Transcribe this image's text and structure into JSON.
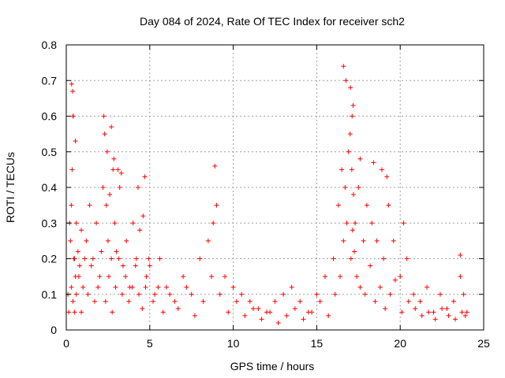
{
  "chart_data": {
    "type": "scatter",
    "title": "Day 084 of 2024, Rate Of TEC Index for receiver sch2",
    "xlabel": "GPS time / hours",
    "ylabel": "ROTI / TECUs",
    "xlim": [
      0,
      25
    ],
    "ylim": [
      0,
      0.8
    ],
    "xticks": [
      "0",
      "5",
      "10",
      "15",
      "20",
      "25"
    ],
    "yticks": [
      "0",
      "0.1",
      "0.2",
      "0.3",
      "0.4",
      "0.5",
      "0.6",
      "0.7",
      "0.8"
    ],
    "grid": true,
    "marker": "+",
    "color": "#ff0000",
    "series": [
      {
        "x": [
          0.1,
          0.2,
          0.25,
          0.3,
          0.35,
          0.4,
          0.45,
          0.5,
          0.55,
          0.6,
          0.7,
          0.8,
          0.9,
          1.0,
          1.2,
          1.4,
          1.6,
          1.8,
          2.0,
          2.2,
          2.3,
          2.4,
          2.5,
          2.6,
          2.7,
          2.8,
          2.9,
          3.0,
          3.2,
          3.4,
          3.6,
          3.8,
          4.0,
          4.2,
          4.4,
          4.6,
          4.8,
          5.0,
          5.3,
          5.6,
          6.0,
          6.5,
          7.0,
          7.5,
          8.0,
          8.5,
          8.8,
          9.0,
          9.5,
          10.0,
          10.5,
          11.0,
          11.5,
          12.0,
          12.5,
          13.0,
          13.5,
          14.0,
          14.5,
          15.0,
          15.5,
          16.0,
          16.3,
          16.5,
          16.7,
          16.9,
          17.0,
          17.1,
          17.2,
          17.3,
          17.5,
          17.8,
          18.0,
          18.3,
          18.6,
          19.0,
          19.3,
          19.6,
          20.0,
          20.4,
          20.8,
          21.2,
          21.6,
          22.0,
          22.4,
          22.8,
          23.2,
          23.6,
          23.8,
          24.0,
          0.15,
          0.3,
          0.4,
          0.5,
          0.6,
          0.75,
          0.9,
          1.1,
          1.3,
          1.5,
          1.7,
          1.9,
          2.1,
          2.35,
          2.55,
          2.75,
          2.95,
          3.15,
          3.35,
          3.55,
          3.75,
          3.95,
          4.15,
          4.35,
          4.55,
          4.75,
          4.95,
          5.2,
          5.5,
          5.8,
          6.2,
          6.7,
          7.2,
          7.7,
          8.2,
          8.7,
          9.2,
          9.7,
          10.2,
          10.7,
          11.2,
          11.7,
          12.2,
          12.7,
          13.2,
          13.7,
          14.2,
          14.7,
          15.2,
          15.7,
          16.1,
          16.4,
          16.6,
          16.8,
          17.05,
          17.15,
          17.25,
          17.4,
          17.6,
          17.9,
          18.2,
          18.5,
          18.8,
          19.1,
          19.4,
          19.7,
          20.1,
          20.5,
          20.9,
          21.3,
          21.7,
          22.1,
          22.5,
          22.9,
          23.3,
          23.7,
          23.9,
          0.32,
          0.38,
          0.42,
          0.55,
          2.25,
          2.45,
          2.7,
          2.85,
          3.1,
          3.3,
          4.3,
          4.7,
          8.9,
          16.6,
          16.75,
          17.02,
          17.12,
          17.18,
          17.6,
          18.4,
          18.9,
          19.2,
          20.2,
          23.6
        ],
        "y": [
          0.1,
          0.3,
          0.25,
          0.35,
          0.45,
          0.6,
          0.2,
          0.05,
          0.15,
          0.3,
          0.22,
          0.18,
          0.28,
          0.12,
          0.25,
          0.35,
          0.2,
          0.3,
          0.15,
          0.4,
          0.55,
          0.35,
          0.25,
          0.38,
          0.2,
          0.45,
          0.3,
          0.22,
          0.4,
          0.18,
          0.25,
          0.12,
          0.3,
          0.2,
          0.28,
          0.32,
          0.15,
          0.18,
          0.1,
          0.2,
          0.12,
          0.08,
          0.15,
          0.1,
          0.2,
          0.25,
          0.3,
          0.35,
          0.15,
          0.12,
          0.1,
          0.08,
          0.06,
          0.05,
          0.08,
          0.1,
          0.12,
          0.08,
          0.05,
          0.1,
          0.15,
          0.2,
          0.35,
          0.45,
          0.4,
          0.5,
          0.55,
          0.45,
          0.38,
          0.3,
          0.4,
          0.25,
          0.35,
          0.3,
          0.25,
          0.2,
          0.35,
          0.25,
          0.15,
          0.2,
          0.1,
          0.08,
          0.12,
          0.05,
          0.1,
          0.06,
          0.08,
          0.15,
          0.1,
          0.05,
          0.05,
          0.12,
          0.08,
          0.2,
          0.1,
          0.15,
          0.05,
          0.2,
          0.1,
          0.18,
          0.08,
          0.12,
          0.22,
          0.08,
          0.15,
          0.05,
          0.12,
          0.2,
          0.1,
          0.15,
          0.08,
          0.12,
          0.18,
          0.1,
          0.06,
          0.12,
          0.2,
          0.08,
          0.12,
          0.05,
          0.1,
          0.06,
          0.12,
          0.04,
          0.08,
          0.15,
          0.1,
          0.05,
          0.08,
          0.04,
          0.06,
          0.03,
          0.05,
          0.02,
          0.04,
          0.06,
          0.03,
          0.05,
          0.08,
          0.04,
          0.1,
          0.15,
          0.25,
          0.3,
          0.2,
          0.28,
          0.22,
          0.15,
          0.12,
          0.1,
          0.18,
          0.08,
          0.12,
          0.06,
          0.1,
          0.14,
          0.05,
          0.08,
          0.06,
          0.04,
          0.05,
          0.03,
          0.06,
          0.04,
          0.03,
          0.05,
          0.04,
          0.69,
          0.67,
          0.6,
          0.53,
          0.6,
          0.5,
          0.57,
          0.48,
          0.45,
          0.44,
          0.4,
          0.43,
          0.46,
          0.74,
          0.7,
          0.68,
          0.6,
          0.63,
          0.48,
          0.47,
          0.45,
          0.43,
          0.3,
          0.21
        ]
      }
    ]
  }
}
